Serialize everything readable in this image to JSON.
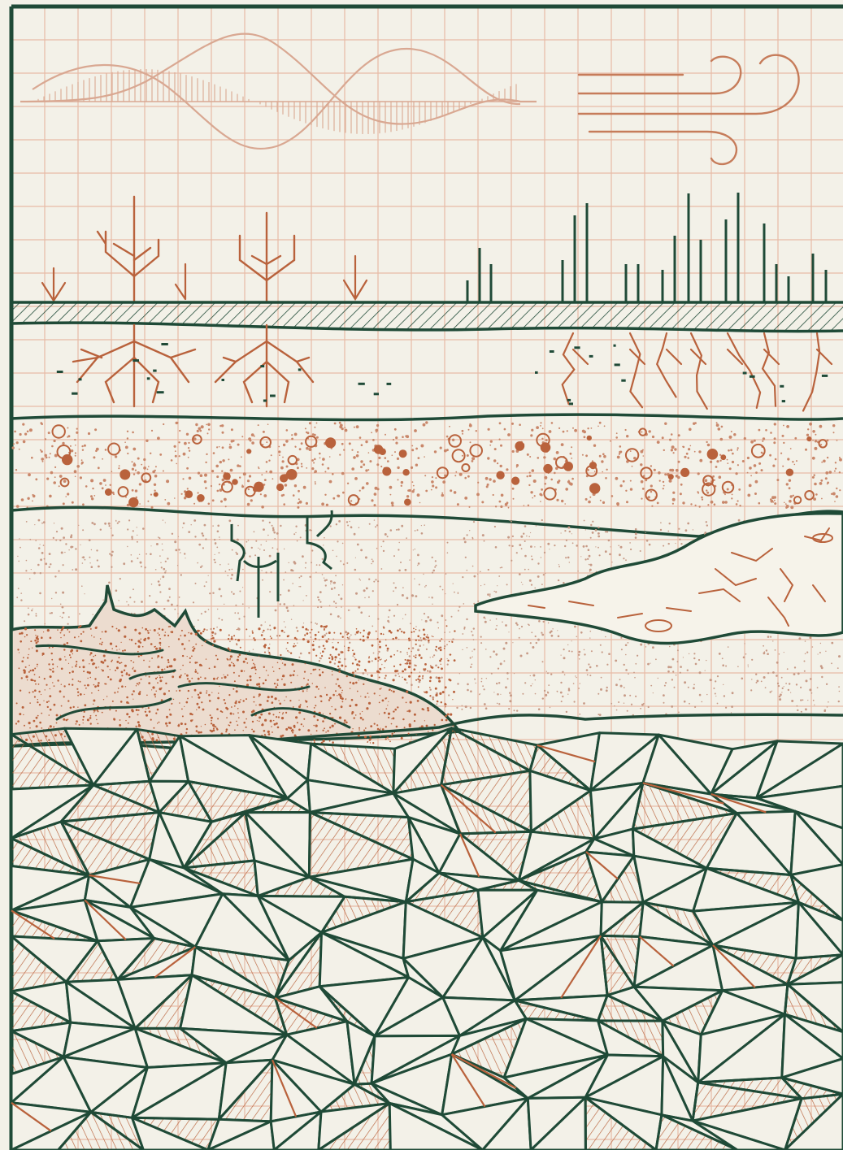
{
  "diagram": {
    "kind": "soil-profile-cross-section",
    "labels": [],
    "colors": {
      "paper": "#f3f1e8",
      "grid": "#e4b7a2",
      "ink_green": "#1f4a37",
      "ink_rust": "#b9623c"
    },
    "elements": [
      "sine-wave-icon",
      "wind-icon",
      "rain-arrows",
      "plant-roots",
      "grass-blades",
      "topsoil-hatch",
      "pebble-layer",
      "sand-layer",
      "clay-lens",
      "fractured-bedrock"
    ]
  }
}
